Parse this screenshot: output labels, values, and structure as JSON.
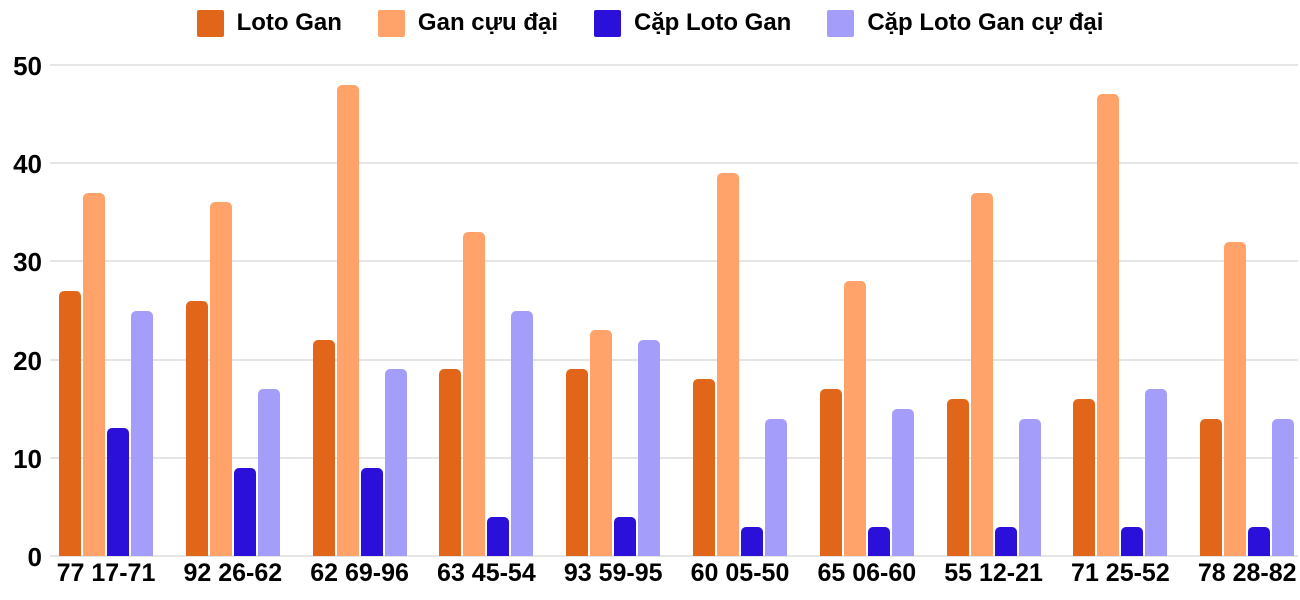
{
  "chart_data": {
    "type": "bar",
    "title": "",
    "xlabel": "",
    "ylabel": "",
    "categories": [
      "77 17-71",
      "92 26-62",
      "62 69-96",
      "63 45-54",
      "93 59-95",
      "60 05-50",
      "65 06-60",
      "55 12-21",
      "71 25-52",
      "78 28-82"
    ],
    "series": [
      {
        "name": "Loto Gan",
        "color": "#e2661a",
        "values": [
          27,
          26,
          22,
          19,
          19,
          18,
          17,
          16,
          16,
          14
        ]
      },
      {
        "name": "Gan cựu đại",
        "color": "#ffa36b",
        "values": [
          37,
          36,
          48,
          33,
          23,
          39,
          28,
          37,
          47,
          32
        ]
      },
      {
        "name": "Cặp Loto Gan",
        "color": "#2a10d8",
        "values": [
          13,
          9,
          9,
          4,
          4,
          3,
          3,
          3,
          3,
          3
        ]
      },
      {
        "name": "Cặp Loto Gan cự đại",
        "color": "#a49efa",
        "values": [
          25,
          17,
          19,
          25,
          22,
          14,
          15,
          14,
          17,
          14
        ]
      }
    ],
    "ylim": [
      0,
      50
    ],
    "yticks": [
      0,
      10,
      20,
      30,
      40,
      50
    ],
    "grid": true,
    "grid_color": "#e5e5e5",
    "text_color": "#000000",
    "background_color": "#ffffff",
    "legend_position": "top"
  }
}
